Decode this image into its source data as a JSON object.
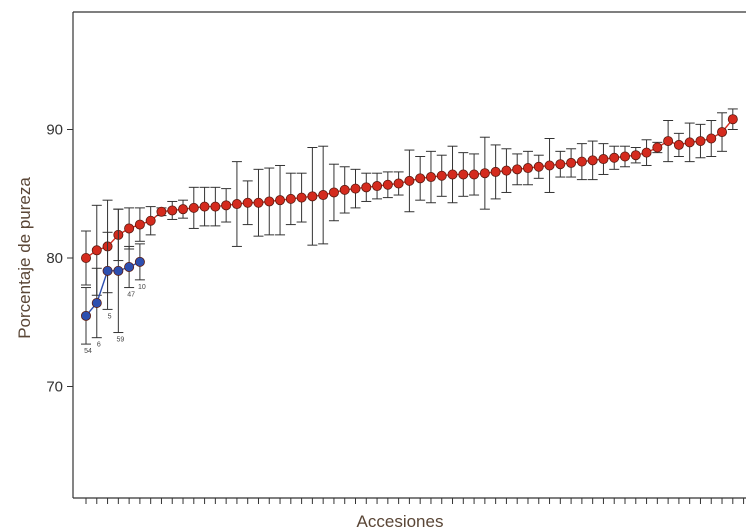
{
  "chart_data": {
    "type": "scatter",
    "title": "",
    "xlabel": "Accesiones",
    "ylabel": "Porcentaje de pureza",
    "ylim": [
      60,
      98
    ],
    "y_ticks": [
      70,
      80,
      90
    ],
    "grid": false,
    "legend": "none",
    "series": [
      {
        "color": "#d42b1e",
        "values": [
          80.0,
          80.6,
          80.9,
          81.8,
          82.3,
          82.6,
          82.9,
          83.6,
          83.7,
          83.8,
          83.9,
          84.0,
          84.0,
          84.1,
          84.2,
          84.3,
          84.3,
          84.4,
          84.5,
          84.6,
          84.7,
          84.8,
          84.9,
          85.1,
          85.3,
          85.4,
          85.5,
          85.6,
          85.7,
          85.8,
          86.0,
          86.2,
          86.3,
          86.4,
          86.5,
          86.5,
          86.5,
          86.6,
          86.7,
          86.8,
          86.9,
          87.0,
          87.1,
          87.2,
          87.3,
          87.4,
          87.5,
          87.6,
          87.7,
          87.8,
          87.9,
          88.0,
          88.2,
          88.6,
          89.1,
          88.8,
          89.0,
          89.1,
          89.3,
          89.8,
          90.8
        ],
        "err": [
          2.1,
          3.5,
          3.6,
          2.0,
          1.6,
          1.3,
          1.1,
          0.3,
          0.7,
          0.7,
          1.6,
          1.5,
          1.5,
          1.3,
          3.3,
          1.7,
          2.6,
          2.6,
          2.7,
          2.0,
          1.9,
          3.8,
          3.8,
          2.2,
          1.8,
          1.5,
          1.1,
          1.0,
          1.0,
          0.9,
          2.4,
          1.7,
          2.0,
          1.6,
          2.2,
          1.7,
          1.6,
          2.8,
          2.1,
          1.7,
          1.2,
          1.3,
          0.9,
          2.1,
          1.0,
          1.1,
          1.4,
          1.5,
          1.2,
          0.9,
          0.8,
          0.6,
          1.0,
          0.4,
          1.6,
          0.9,
          1.5,
          1.3,
          1.4,
          1.5,
          0.8
        ]
      },
      {
        "color": "#2d4fb0",
        "values": [
          75.5,
          76.5,
          79.0,
          79.0,
          79.3,
          79.7
        ],
        "err": [
          2.2,
          2.7,
          3.0,
          4.8,
          1.6,
          1.4
        ],
        "labels": [
          "54",
          "6",
          "5",
          "59",
          "47",
          "10"
        ]
      }
    ]
  }
}
